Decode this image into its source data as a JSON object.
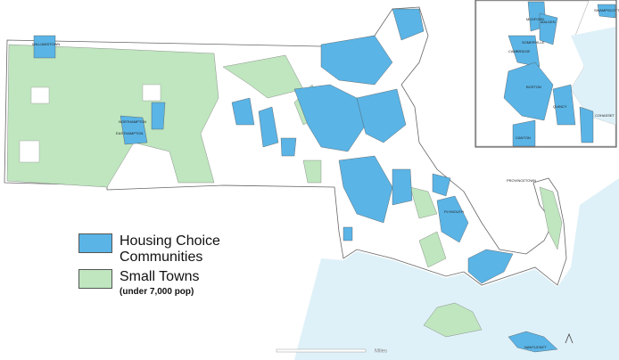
{
  "legend": {
    "items": [
      {
        "label": "Housing Choice Communities",
        "color": "#5ab4e6"
      },
      {
        "label": "Small Towns",
        "color": "#bfe6bf"
      }
    ],
    "note": "(under 7,000 pop)"
  },
  "map": {
    "labels": [
      "WILLIAMSTOWN",
      "NORTHAMPTON",
      "EASTHAMPTON",
      "PLYMOUTH",
      "PROVINCETOWN",
      "NANTUCKET"
    ]
  },
  "inset": {
    "labels": [
      "SWAMPSCOTT",
      "MEDFORD",
      "MALDEN",
      "SOMERVILLE",
      "CAMBRIDGE",
      "BOSTON",
      "QUINCY",
      "CANTON",
      "COHASSET"
    ]
  },
  "scale": {
    "unit": "Miles"
  }
}
